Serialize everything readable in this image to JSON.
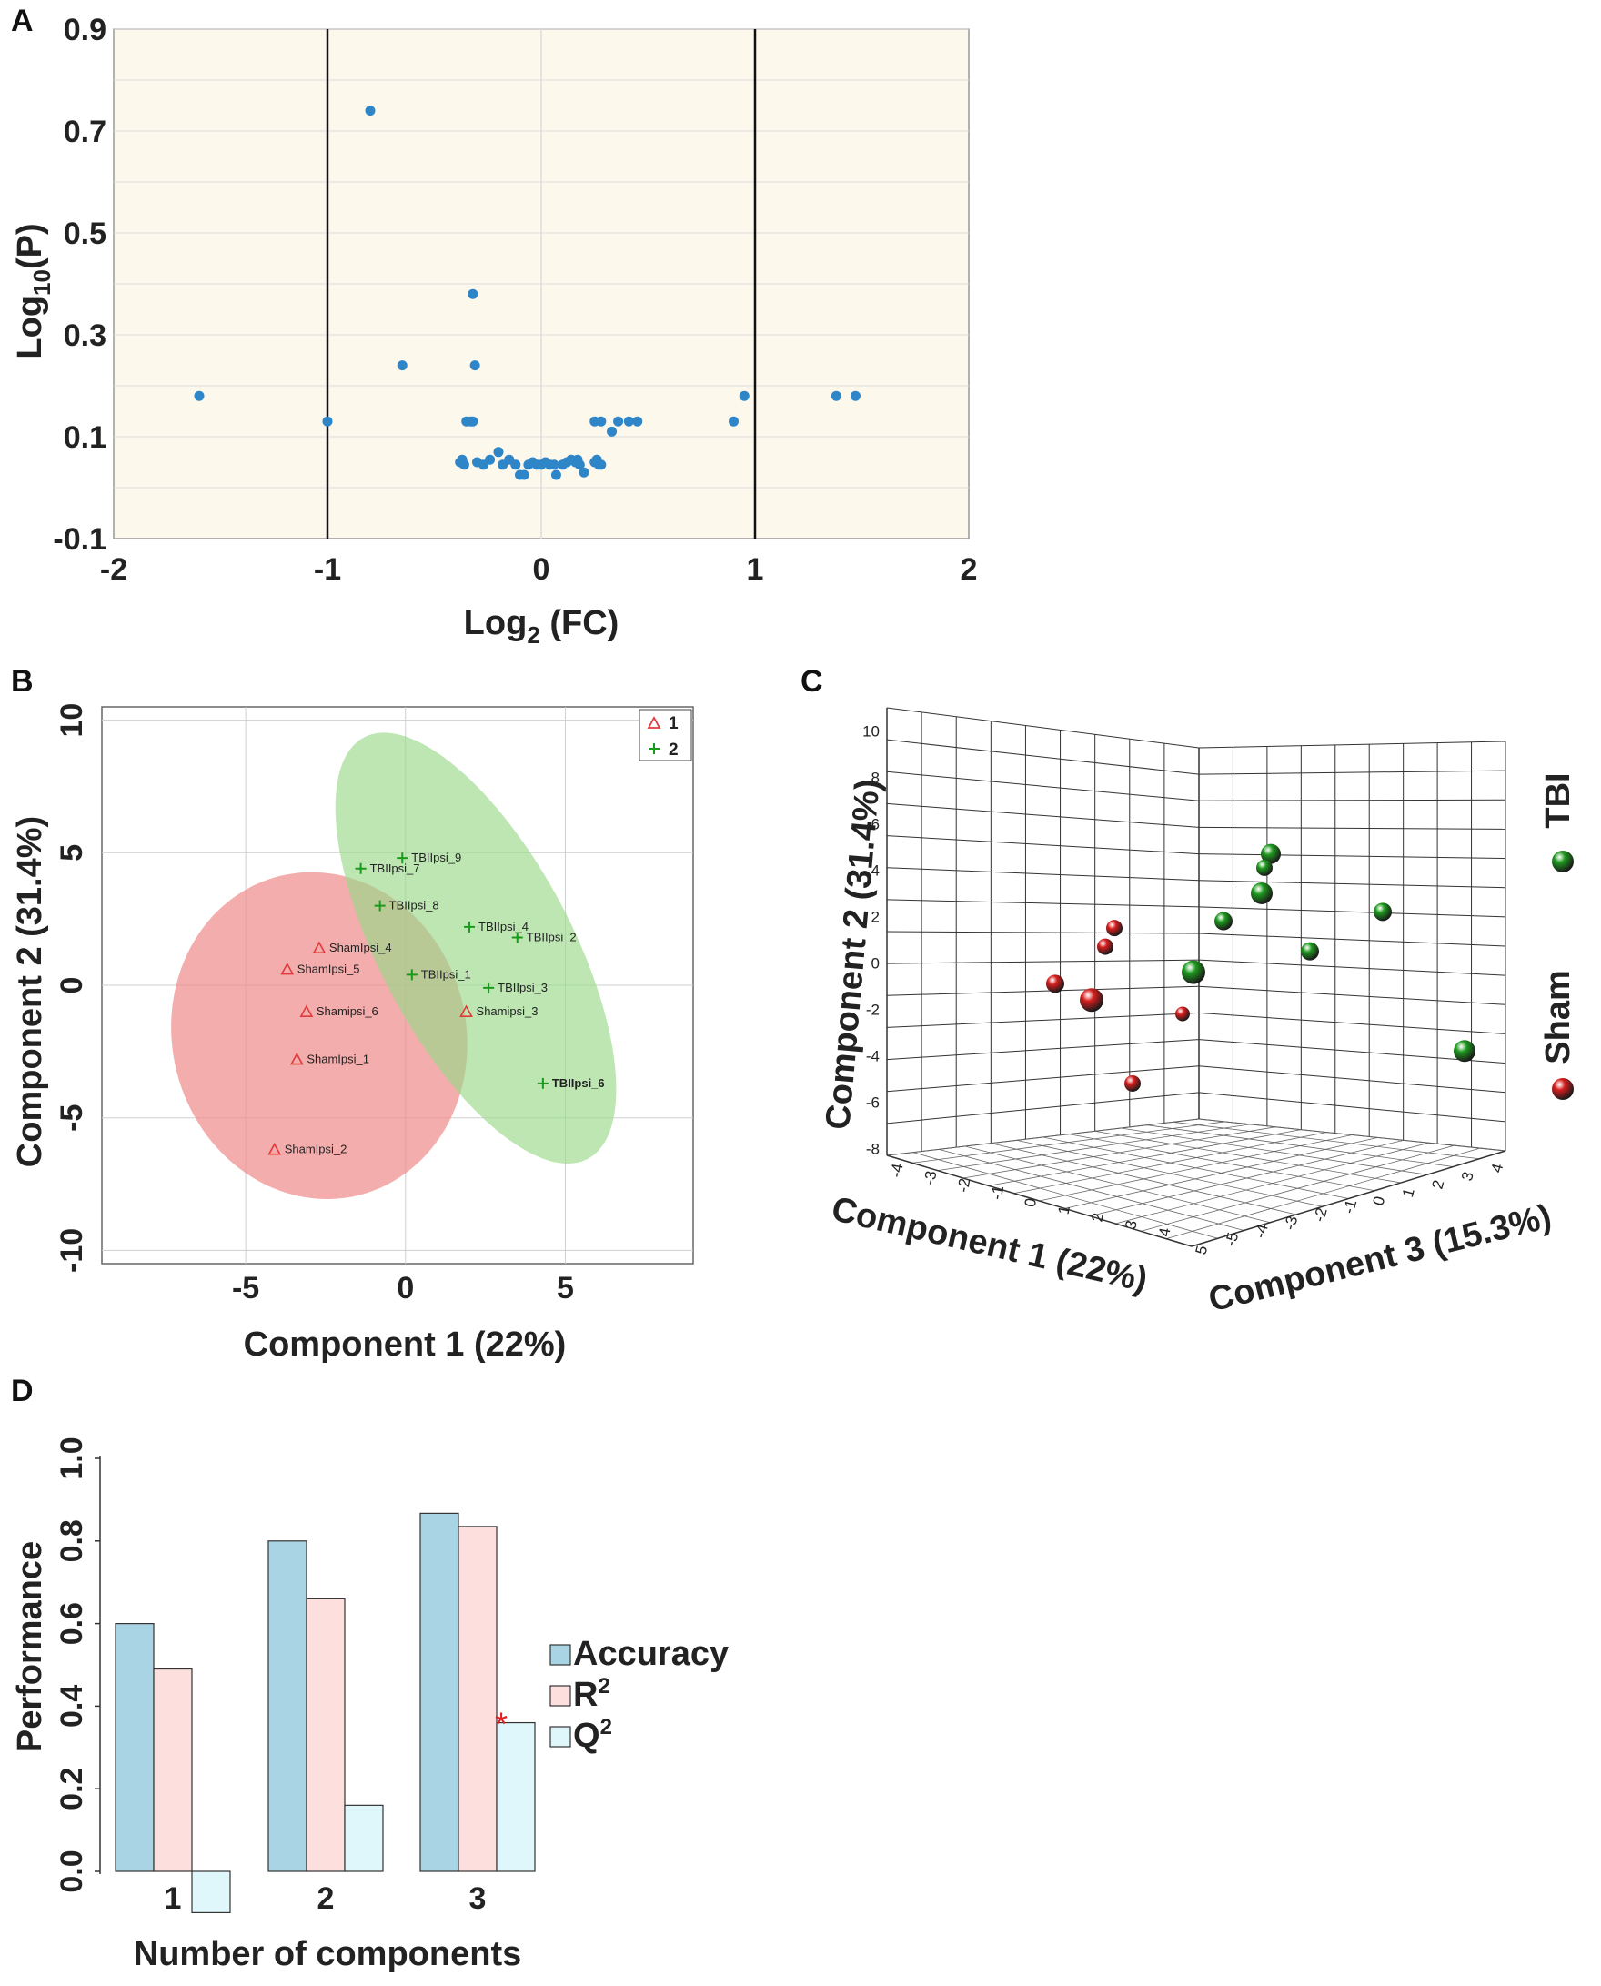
{
  "chart_data": [
    {
      "panel": "A",
      "type": "scatter",
      "title": "",
      "xlabel_main": "Log",
      "xlabel_sub": "2",
      "xlabel_tail": " (FC)",
      "ylabel_main": "Log",
      "ylabel_sub": "10",
      "ylabel_tail": "(P)",
      "xlim": [
        -2,
        2
      ],
      "ylim": [
        -0.1,
        0.9
      ],
      "xticks": [
        "-2",
        "-1",
        "0",
        "1",
        "2"
      ],
      "yticks": [
        "-0.1",
        "0.1",
        "0.3",
        "0.5",
        "0.7",
        "0.9"
      ],
      "threshold_lines_x": [
        -1,
        1
      ],
      "point_color": "#2e86c8",
      "points": [
        [
          -0.8,
          0.74
        ],
        [
          -1.6,
          0.18
        ],
        [
          -1.0,
          0.13
        ],
        [
          -0.65,
          0.24
        ],
        [
          -0.32,
          0.38
        ],
        [
          -0.31,
          0.24
        ],
        [
          -0.35,
          0.13
        ],
        [
          -0.33,
          0.13
        ],
        [
          -0.32,
          0.13
        ],
        [
          -0.38,
          0.05
        ],
        [
          -0.37,
          0.055
        ],
        [
          -0.36,
          0.045
        ],
        [
          -0.3,
          0.05
        ],
        [
          -0.27,
          0.045
        ],
        [
          -0.24,
          0.055
        ],
        [
          -0.2,
          0.07
        ],
        [
          -0.18,
          0.045
        ],
        [
          -0.15,
          0.055
        ],
        [
          -0.12,
          0.045
        ],
        [
          -0.1,
          0.025
        ],
        [
          -0.08,
          0.025
        ],
        [
          -0.06,
          0.045
        ],
        [
          -0.04,
          0.05
        ],
        [
          -0.02,
          0.045
        ],
        [
          0.0,
          0.045
        ],
        [
          0.02,
          0.05
        ],
        [
          0.04,
          0.045
        ],
        [
          0.06,
          0.045
        ],
        [
          0.07,
          0.025
        ],
        [
          0.1,
          0.045
        ],
        [
          0.12,
          0.05
        ],
        [
          0.14,
          0.055
        ],
        [
          0.16,
          0.05
        ],
        [
          0.17,
          0.055
        ],
        [
          0.18,
          0.045
        ],
        [
          0.2,
          0.03
        ],
        [
          0.25,
          0.05
        ],
        [
          0.26,
          0.055
        ],
        [
          0.27,
          0.045
        ],
        [
          0.28,
          0.045
        ],
        [
          0.25,
          0.13
        ],
        [
          0.28,
          0.13
        ],
        [
          0.33,
          0.11
        ],
        [
          0.36,
          0.13
        ],
        [
          0.41,
          0.13
        ],
        [
          0.45,
          0.13
        ],
        [
          0.9,
          0.13
        ],
        [
          0.95,
          0.18
        ],
        [
          1.38,
          0.18
        ],
        [
          1.47,
          0.18
        ]
      ]
    },
    {
      "panel": "B",
      "type": "scatter",
      "xlabel": "Component 1 (22%)",
      "ylabel": "Component  2 (31.4%)",
      "xlim": [
        -9.5,
        9
      ],
      "ylim": [
        -10.5,
        10.5
      ],
      "xticks": [
        "-5",
        "0",
        "5"
      ],
      "yticks": [
        "10",
        "5",
        "0",
        "-5",
        "-10"
      ],
      "legend": [
        "1",
        "2"
      ],
      "group1_color": "#e23a3a",
      "group2_color": "#1a9a1a",
      "ellipse1_fill": "#f08a8a",
      "ellipse2_fill": "#9ad98a",
      "group1": [
        {
          "name": "ShamIpsi_4",
          "x": -2.7,
          "y": 1.4
        },
        {
          "name": "ShamIpsi_5",
          "x": -3.7,
          "y": 0.6
        },
        {
          "name": "Shamipsi_6",
          "x": -3.1,
          "y": -1.0
        },
        {
          "name": "ShamIpsi_1",
          "x": -3.4,
          "y": -2.8
        },
        {
          "name": "ShamIpsi_2",
          "x": -4.1,
          "y": -6.2
        },
        {
          "name": "Shamipsi_3",
          "x": 1.9,
          "y": -1.0
        }
      ],
      "group2": [
        {
          "name": "TBIIpsi_9",
          "x": -0.1,
          "y": 4.8
        },
        {
          "name": "TBIIpsi_7",
          "x": -1.4,
          "y": 4.4
        },
        {
          "name": "TBIIpsi_8",
          "x": -0.8,
          "y": 3.0
        },
        {
          "name": "TBIIpsi_4",
          "x": 2.0,
          "y": 2.2
        },
        {
          "name": "TBIIpsi_2",
          "x": 3.5,
          "y": 1.8
        },
        {
          "name": "TBIIpsi_1",
          "x": 0.2,
          "y": 0.4
        },
        {
          "name": "TBIIpsi_3",
          "x": 2.6,
          "y": -0.1
        },
        {
          "name": "TBIIpsi_6",
          "x": 4.3,
          "y": -3.7
        }
      ]
    },
    {
      "panel": "C",
      "type": "scatter",
      "xlabel": "Component 1 (22%)",
      "ylabel": "Component 2 (31.4%)",
      "zlabel": "Component 3 (15.3%)",
      "yticks": [
        "10",
        "8",
        "6",
        "4",
        "2",
        "0",
        "-2",
        "-4",
        "-6",
        "-8"
      ],
      "xticks": [
        "-4",
        "-3",
        "-2",
        "-1",
        "0",
        "1",
        "2",
        "3",
        "4"
      ],
      "zticks": [
        "5",
        "-5",
        "-4",
        "-3",
        "-2",
        "-1",
        "0",
        "1",
        "2",
        "3",
        "4"
      ],
      "legend": [
        "TBI",
        "Sham"
      ],
      "tbi_color": "#1e9a1e",
      "sham_color": "#d81e1e",
      "tbi_points_y": [
        4.7,
        4.1,
        3.0,
        1.8,
        2.2,
        0.5,
        -0.4,
        -3.8
      ],
      "sham_points_y": [
        1.5,
        0.7,
        -0.9,
        -1.6,
        -2.2,
        -5.2
      ]
    },
    {
      "panel": "D",
      "type": "bar",
      "categories": [
        "1",
        "2",
        "3"
      ],
      "series": [
        {
          "name": "Accuracy",
          "values": [
            0.6,
            0.8,
            0.867
          ]
        },
        {
          "name": "R",
          "name_sup": "2",
          "values": [
            0.49,
            0.66,
            0.835
          ]
        },
        {
          "name": "Q",
          "name_sup": "2",
          "values": [
            -0.1,
            0.16,
            0.36
          ]
        }
      ],
      "colors": [
        "#a9d4e4",
        "#fde0de",
        "#dff7fa"
      ],
      "xlabel": "Number of components",
      "ylabel": "Performance",
      "ylim": [
        0.0,
        1.0
      ],
      "yticks": [
        "0.0",
        "0.2",
        "0.4",
        "0.6",
        "0.8",
        "1.0"
      ],
      "annotation": "*",
      "annotation_color": "#e02020"
    }
  ],
  "panel_letters": [
    "A",
    "B",
    "C",
    "D"
  ]
}
